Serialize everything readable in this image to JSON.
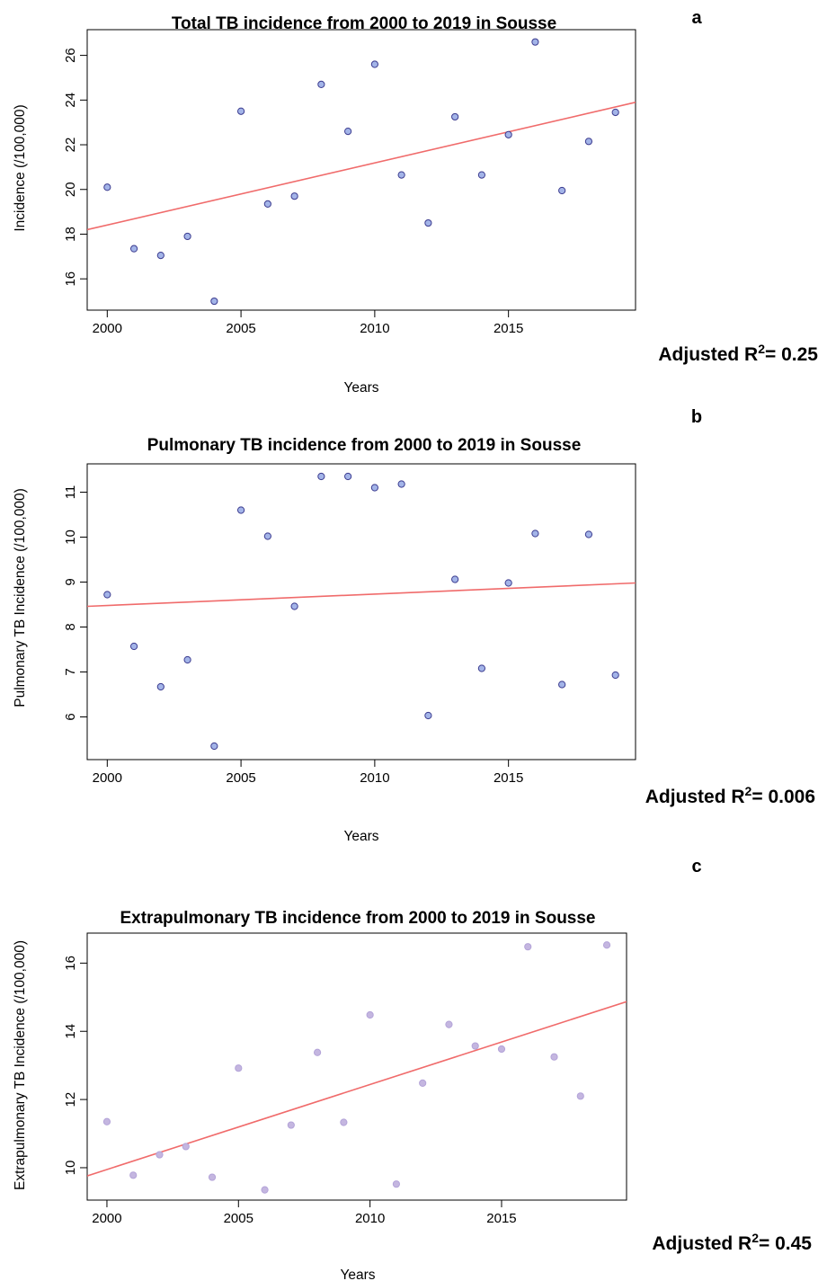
{
  "chart_data": [
    {
      "type": "scatter",
      "panel_label": "a",
      "title": "Total TB incidence from 2000 to 2019 in Sousse",
      "xlabel": "Years",
      "ylabel": "Incidence (/100,000)",
      "xticks": [
        "2000",
        "2005",
        "2010",
        "2015"
      ],
      "yticks": [
        "16",
        "18",
        "20",
        "22",
        "24",
        "26"
      ],
      "xlim": [
        1999.25,
        2019.75
      ],
      "ylim": [
        14.6,
        27.15
      ],
      "point_fill": "#a3b4e8",
      "point_stroke": "#3b3b8f",
      "trend_color": "#f06b6b",
      "series": [
        {
          "x": [
            2000,
            2001,
            2002,
            2003,
            2004,
            2005,
            2006,
            2007,
            2008,
            2009,
            2010,
            2011,
            2012,
            2013,
            2014,
            2015,
            2016,
            2017,
            2018,
            2019
          ],
          "y": [
            20.1,
            17.35,
            17.05,
            17.9,
            15.0,
            23.5,
            19.35,
            19.7,
            24.7,
            22.6,
            25.6,
            20.65,
            18.5,
            23.25,
            20.65,
            22.45,
            26.6,
            19.95,
            22.15,
            23.45
          ]
        }
      ],
      "trend": {
        "x": [
          1999.25,
          2019.75
        ],
        "y": [
          18.2,
          23.9
        ]
      },
      "annotation": {
        "prefix": "Adjusted R",
        "sup": "2",
        "suffix": "= 0.25"
      }
    },
    {
      "type": "scatter",
      "panel_label": "b",
      "title": "Pulmonary TB incidence from 2000 to 2019 in Sousse",
      "xlabel": "Years",
      "ylabel": "Pulmonary TB Incidence (/100,000)",
      "xticks": [
        "2000",
        "2005",
        "2010",
        "2015"
      ],
      "yticks": [
        "6",
        "7",
        "8",
        "9",
        "10",
        "11"
      ],
      "xlim": [
        1999.25,
        2019.75
      ],
      "ylim": [
        5.05,
        11.63
      ],
      "point_fill": "#a3b4e8",
      "point_stroke": "#3b3b8f",
      "trend_color": "#f06b6b",
      "series": [
        {
          "x": [
            2000,
            2001,
            2002,
            2003,
            2004,
            2005,
            2006,
            2007,
            2008,
            2009,
            2010,
            2011,
            2012,
            2013,
            2014,
            2015,
            2016,
            2017,
            2018,
            2019
          ],
          "y": [
            8.72,
            7.57,
            6.67,
            7.27,
            5.35,
            10.6,
            10.02,
            8.46,
            11.35,
            11.35,
            11.1,
            11.18,
            6.03,
            9.06,
            7.08,
            8.98,
            10.08,
            6.72,
            10.06,
            6.93
          ]
        }
      ],
      "trend": {
        "x": [
          1999.25,
          2019.75
        ],
        "y": [
          8.46,
          8.98
        ]
      },
      "annotation": {
        "prefix": "Adjusted R",
        "sup": "2",
        "suffix": "= 0.006"
      }
    },
    {
      "type": "scatter",
      "panel_label": "c",
      "title": "Extrapulmonary TB incidence from 2000 to 2019 in Sousse",
      "xlabel": "Years",
      "ylabel": "Extrapulmonary TB Incidence (/100,000)",
      "xticks": [
        "2000",
        "2005",
        "2010",
        "2015"
      ],
      "yticks": [
        "10",
        "12",
        "14",
        "16"
      ],
      "xlim": [
        1999.25,
        2019.75
      ],
      "ylim": [
        9.05,
        16.88
      ],
      "point_fill": "#c4b6e0",
      "point_stroke": "#b3a3d8",
      "trend_color": "#f06b6b",
      "series": [
        {
          "x": [
            2000,
            2001,
            2002,
            2003,
            2004,
            2005,
            2006,
            2007,
            2008,
            2009,
            2010,
            2011,
            2012,
            2013,
            2014,
            2015,
            2016,
            2017,
            2018,
            2019
          ],
          "y": [
            11.35,
            9.78,
            10.38,
            10.62,
            9.72,
            12.92,
            9.35,
            11.25,
            13.38,
            11.33,
            14.48,
            9.52,
            12.48,
            14.2,
            13.57,
            13.48,
            16.48,
            13.25,
            12.1,
            16.53
          ]
        }
      ],
      "trend": {
        "x": [
          1999.25,
          2019.75
        ],
        "y": [
          9.76,
          14.87
        ]
      },
      "annotation": {
        "prefix": "Adjusted R",
        "sup": "2",
        "suffix": "= 0.45"
      }
    }
  ]
}
